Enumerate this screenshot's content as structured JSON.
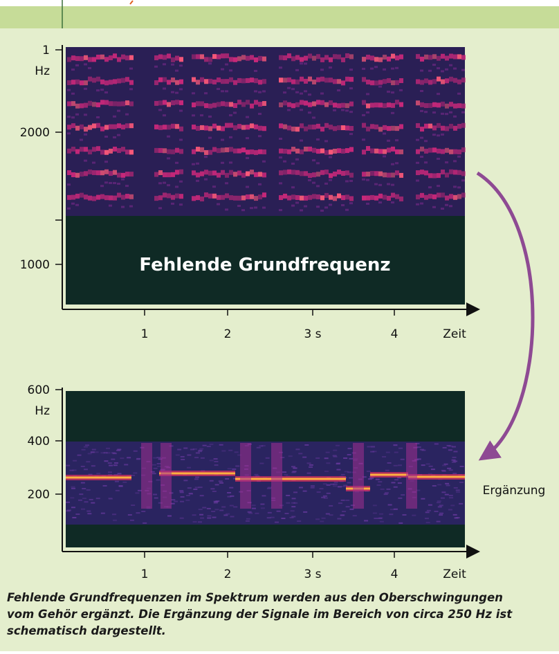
{
  "upper_panel": {
    "y_labels": [
      "1",
      "Hz",
      "2000",
      "1000"
    ],
    "x_labels": [
      "1",
      "2",
      "3 s",
      "4",
      "Zeit"
    ],
    "annotation": "Fehlende Grundfrequenz"
  },
  "lower_panel": {
    "y_labels": [
      "600",
      "Hz",
      "400",
      "200"
    ],
    "x_labels": [
      "1",
      "2",
      "3 s",
      "4",
      "Zeit"
    ],
    "annotation": "Ergänzung"
  },
  "caption": [
    "Fehlende Grundfrequenzen im Spektrum werden aus den Oberschwingungen",
    "vom Gehör ergänzt. Die Ergänzung der Signale im Bereich von circa 250 Hz ist",
    "schematisch dargestellt."
  ]
}
